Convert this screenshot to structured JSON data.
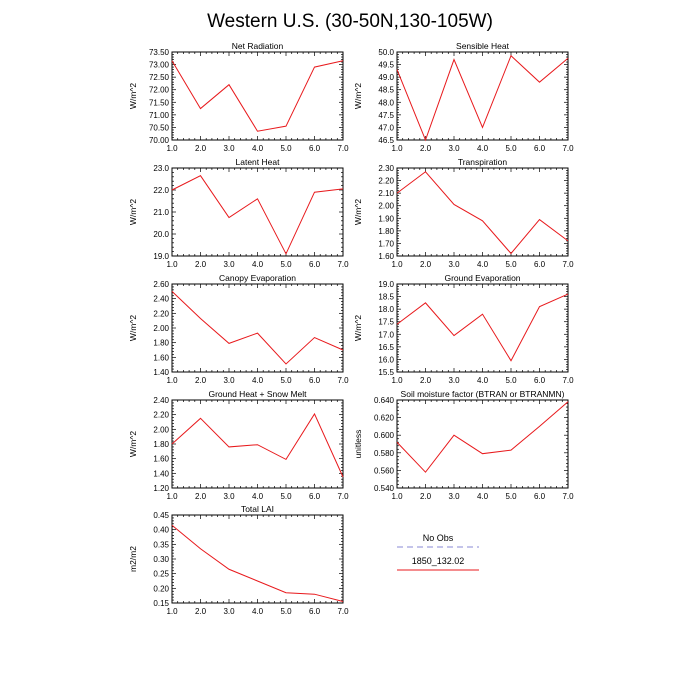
{
  "title": "Western U.S. (30-50N,130-105W)",
  "legend": {
    "items": [
      {
        "label": "No Obs",
        "color": "#8a8ad6",
        "dash": true
      },
      {
        "label": "1850_132.02",
        "color": "#e8191c",
        "dash": false
      }
    ]
  },
  "series_color": "#e8191c",
  "chart_data": [
    {
      "type": "line",
      "title": "Net Radiation",
      "ylabel": "W/m^2",
      "x": [
        1,
        2,
        3,
        4,
        5,
        6,
        7
      ],
      "values": [
        73.15,
        71.25,
        72.2,
        70.35,
        70.55,
        72.9,
        73.15
      ],
      "xlim": [
        1,
        7
      ],
      "ylim": [
        70.0,
        73.5
      ],
      "xticks": [
        "1.0",
        "2.0",
        "3.0",
        "4.0",
        "5.0",
        "6.0",
        "7.0"
      ],
      "yticks": [
        "70.00",
        "70.50",
        "71.00",
        "71.50",
        "72.00",
        "72.50",
        "73.00",
        "73.50"
      ]
    },
    {
      "type": "line",
      "title": "Sensible Heat",
      "ylabel": "W/m^2",
      "x": [
        1,
        2,
        3,
        4,
        5,
        6,
        7
      ],
      "values": [
        49.3,
        46.5,
        49.7,
        47.0,
        49.85,
        48.8,
        49.75
      ],
      "xlim": [
        1,
        7
      ],
      "ylim": [
        46.5,
        50.0
      ],
      "xticks": [
        "1.0",
        "2.0",
        "3.0",
        "4.0",
        "5.0",
        "6.0",
        "7.0"
      ],
      "yticks": [
        "46.5",
        "47.0",
        "47.5",
        "48.0",
        "48.5",
        "49.0",
        "49.5",
        "50.0"
      ]
    },
    {
      "type": "line",
      "title": "Latent Heat",
      "ylabel": "W/m^2",
      "x": [
        1,
        2,
        3,
        4,
        5,
        6,
        7
      ],
      "values": [
        22.0,
        22.65,
        20.75,
        21.6,
        19.1,
        21.9,
        22.05
      ],
      "xlim": [
        1,
        7
      ],
      "ylim": [
        19.0,
        23.0
      ],
      "xticks": [
        "1.0",
        "2.0",
        "3.0",
        "4.0",
        "5.0",
        "6.0",
        "7.0"
      ],
      "yticks": [
        "19.0",
        "20.0",
        "21.0",
        "22.0",
        "23.0"
      ]
    },
    {
      "type": "line",
      "title": "Transpiration",
      "ylabel": "W/m^2",
      "x": [
        1,
        2,
        3,
        4,
        5,
        6,
        7
      ],
      "values": [
        2.1,
        2.27,
        2.01,
        1.88,
        1.62,
        1.89,
        1.72
      ],
      "xlim": [
        1,
        7
      ],
      "ylim": [
        1.6,
        2.3
      ],
      "xticks": [
        "1.0",
        "2.0",
        "3.0",
        "4.0",
        "5.0",
        "6.0",
        "7.0"
      ],
      "yticks": [
        "1.60",
        "1.70",
        "1.80",
        "1.90",
        "2.00",
        "2.10",
        "2.20",
        "2.30"
      ]
    },
    {
      "type": "line",
      "title": "Canopy Evaporation",
      "ylabel": "W/m^2",
      "x": [
        1,
        2,
        3,
        4,
        5,
        6,
        7
      ],
      "values": [
        2.5,
        2.13,
        1.79,
        1.93,
        1.51,
        1.87,
        1.7
      ],
      "xlim": [
        1,
        7
      ],
      "ylim": [
        1.4,
        2.6
      ],
      "xticks": [
        "1.0",
        "2.0",
        "3.0",
        "4.0",
        "5.0",
        "6.0",
        "7.0"
      ],
      "yticks": [
        "1.40",
        "1.60",
        "1.80",
        "2.00",
        "2.20",
        "2.40",
        "2.60"
      ]
    },
    {
      "type": "line",
      "title": "Ground Evaporation",
      "ylabel": "W/m^2",
      "x": [
        1,
        2,
        3,
        4,
        5,
        6,
        7
      ],
      "values": [
        17.4,
        18.25,
        16.95,
        17.8,
        15.95,
        18.1,
        18.6
      ],
      "xlim": [
        1,
        7
      ],
      "ylim": [
        15.5,
        19.0
      ],
      "xticks": [
        "1.0",
        "2.0",
        "3.0",
        "4.0",
        "5.0",
        "6.0",
        "7.0"
      ],
      "yticks": [
        "15.5",
        "16.0",
        "16.5",
        "17.0",
        "17.5",
        "18.0",
        "18.5",
        "19.0"
      ]
    },
    {
      "type": "line",
      "title": "Ground Heat + Snow Melt",
      "ylabel": "W/m^2",
      "x": [
        1,
        2,
        3,
        4,
        5,
        6,
        7
      ],
      "values": [
        1.8,
        2.15,
        1.76,
        1.79,
        1.59,
        2.21,
        1.35
      ],
      "xlim": [
        1,
        7
      ],
      "ylim": [
        1.2,
        2.4
      ],
      "xticks": [
        "1.0",
        "2.0",
        "3.0",
        "4.0",
        "5.0",
        "6.0",
        "7.0"
      ],
      "yticks": [
        "1.20",
        "1.40",
        "1.60",
        "1.80",
        "2.00",
        "2.20",
        "2.40"
      ]
    },
    {
      "type": "line",
      "title": "Soil moisture factor (BTRAN or BTRANMN)",
      "ylabel": "unitless",
      "x": [
        1,
        2,
        3,
        4,
        5,
        6,
        7
      ],
      "values": [
        0.592,
        0.558,
        0.6,
        0.579,
        0.583,
        0.61,
        0.638
      ],
      "xlim": [
        1,
        7
      ],
      "ylim": [
        0.54,
        0.64
      ],
      "xticks": [
        "1.0",
        "2.0",
        "3.0",
        "4.0",
        "5.0",
        "6.0",
        "7.0"
      ],
      "yticks": [
        "0.540",
        "0.560",
        "0.580",
        "0.600",
        "0.620",
        "0.640"
      ]
    },
    {
      "type": "line",
      "title": "Total LAI",
      "ylabel": "m2/m2",
      "x": [
        1,
        2,
        3,
        4,
        5,
        6,
        7
      ],
      "values": [
        0.415,
        0.335,
        0.265,
        0.225,
        0.185,
        0.18,
        0.155
      ],
      "xlim": [
        1,
        7
      ],
      "ylim": [
        0.15,
        0.45
      ],
      "xticks": [
        "1.0",
        "2.0",
        "3.0",
        "4.0",
        "5.0",
        "6.0",
        "7.0"
      ],
      "yticks": [
        "0.15",
        "0.20",
        "0.25",
        "0.30",
        "0.35",
        "0.40",
        "0.45"
      ]
    }
  ]
}
